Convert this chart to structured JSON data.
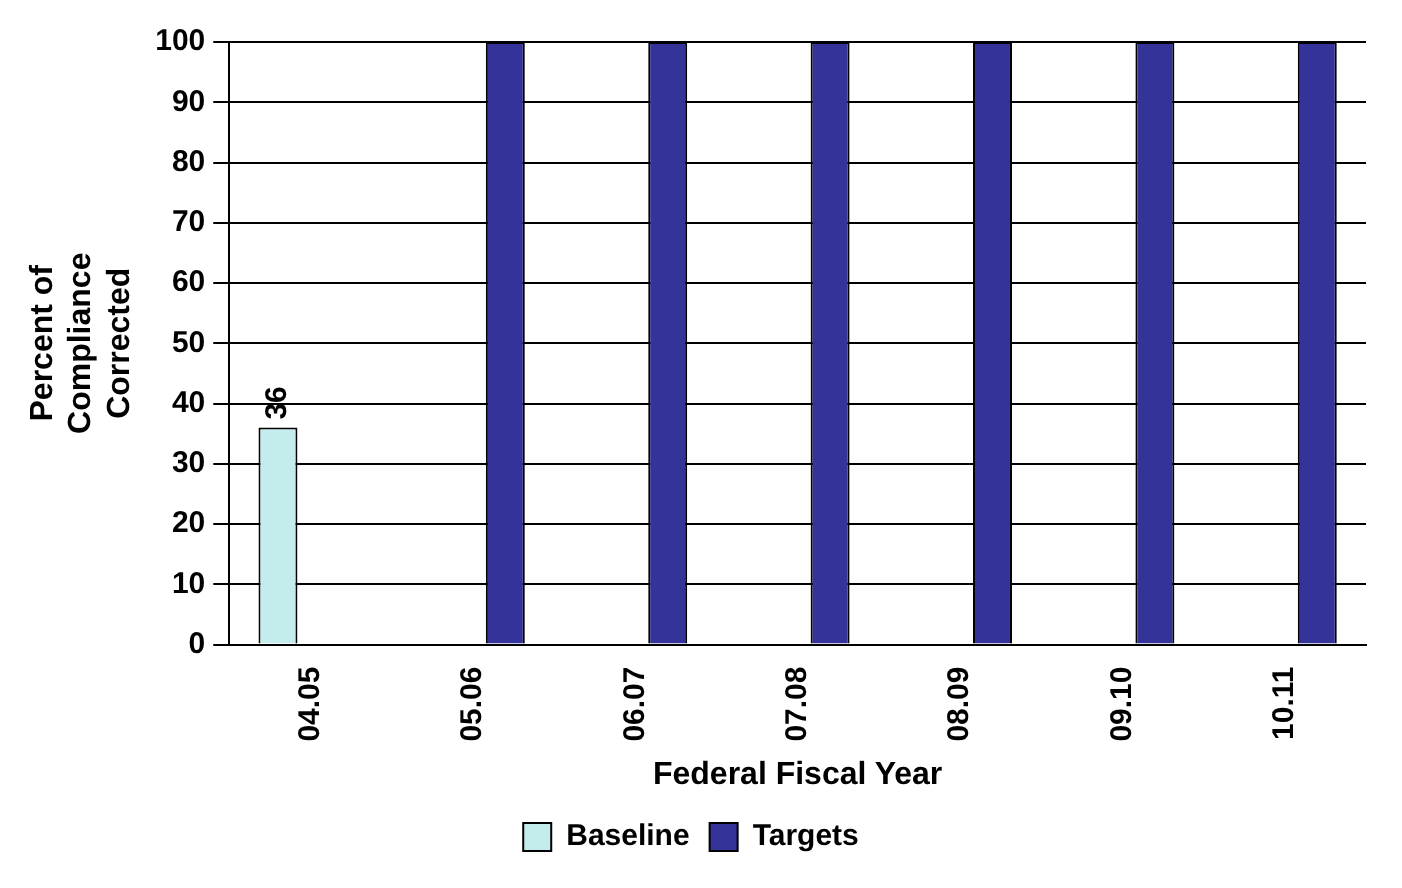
{
  "chart_data": {
    "type": "bar",
    "xlabel": "Federal Fiscal Year",
    "ylabel": "Percent of Compliance Corrected",
    "categories": [
      "04.05",
      "05.06",
      "06.07",
      "07.08",
      "08.09",
      "09.10",
      "10.11"
    ],
    "series": [
      {
        "name": "Baseline",
        "color": "#c4ecec",
        "values": [
          36,
          null,
          null,
          null,
          null,
          null,
          null
        ],
        "value_labels": [
          "36",
          null,
          null,
          null,
          null,
          null,
          null
        ]
      },
      {
        "name": "Targets",
        "color": "#333399",
        "values": [
          null,
          100,
          100,
          100,
          100,
          100,
          100
        ]
      }
    ],
    "ylim": [
      0,
      100
    ],
    "yticks": [
      0,
      10,
      20,
      30,
      40,
      50,
      60,
      70,
      80,
      90,
      100
    ],
    "grid": "y",
    "legend": "bottom"
  }
}
